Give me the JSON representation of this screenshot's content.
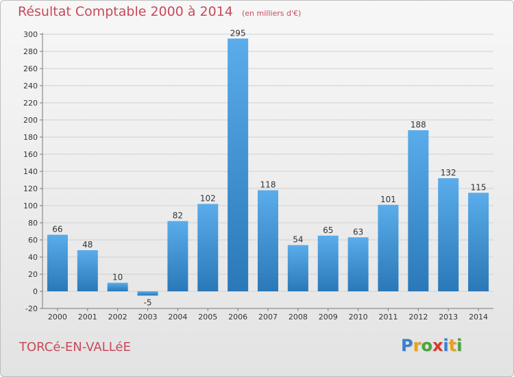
{
  "header": {
    "title": "Résultat Comptable 2000 à 2014",
    "subtitle": "(en milliers d'€)"
  },
  "footer": {
    "commune": "TORCé-EN-VALLéE",
    "logo_letters": [
      "P",
      "r",
      "o",
      "x",
      "i",
      "t",
      "i"
    ],
    "logo_colors": [
      "#3a7fd0",
      "#e8a21a",
      "#4aa43b",
      "#d93a2b",
      "#3a7fd0",
      "#e8a21a",
      "#4aa43b"
    ]
  },
  "colors": {
    "bar_top": "#5aacea",
    "bar_bottom": "#2a78b8",
    "text_accent": "#c8485b"
  },
  "chart_data": {
    "type": "bar",
    "title": "Résultat Comptable 2000 à 2014",
    "subtitle": "(en milliers d'€)",
    "categories": [
      "2000",
      "2001",
      "2002",
      "2003",
      "2004",
      "2005",
      "2006",
      "2007",
      "2008",
      "2009",
      "2010",
      "2011",
      "2012",
      "2013",
      "2014"
    ],
    "values": [
      66,
      48,
      10,
      -5,
      82,
      102,
      295,
      118,
      54,
      65,
      63,
      101,
      188,
      132,
      115
    ],
    "ylim": [
      -20,
      300
    ],
    "yticks": [
      -20,
      0,
      20,
      40,
      60,
      80,
      100,
      120,
      140,
      160,
      180,
      200,
      220,
      240,
      260,
      280,
      300
    ],
    "grid": true,
    "legend": "none"
  }
}
